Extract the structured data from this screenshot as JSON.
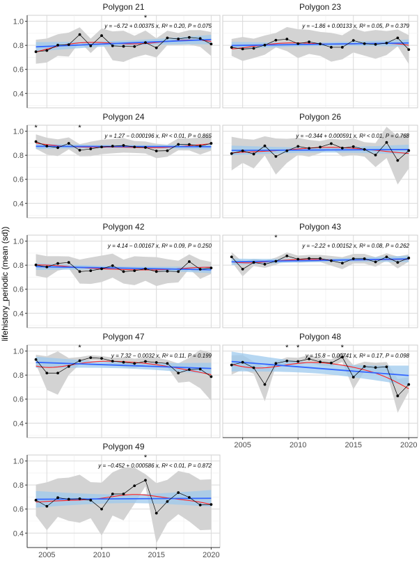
{
  "chart_data": {
    "type": "line",
    "ylabel": "lifehistory_periodic (mean (sd))",
    "xlabel": "",
    "xlim": [
      2003.2,
      2020.8
    ],
    "ylim": [
      0.28,
      1.05
    ],
    "x_ticks": [
      2005,
      2010,
      2015,
      2020
    ],
    "y_ticks": [
      0.4,
      0.6,
      0.8,
      1.0
    ],
    "grid": true,
    "colors": {
      "points": "#000000",
      "sd_band": "#d3d3d3",
      "linear_fit": "#3366ff",
      "linear_ci": "#9ec9ee",
      "smooth": "#ff2020"
    },
    "x": [
      2004,
      2005,
      2006,
      2007,
      2008,
      2009,
      2010,
      2011,
      2012,
      2013,
      2014,
      2015,
      2016,
      2017,
      2018,
      2019,
      2020
    ],
    "panels": [
      {
        "title": "Polygon 21",
        "equation": "y = −6.72 + 0.00375 x, R² = 0.20, P = 0.075",
        "stars": [
          2014
        ],
        "mean": [
          0.747,
          0.757,
          0.802,
          0.806,
          0.89,
          0.796,
          0.881,
          0.796,
          0.792,
          0.79,
          0.823,
          0.779,
          0.862,
          0.853,
          0.866,
          0.857,
          0.811
        ],
        "sd": [
          0.1,
          0.1,
          0.09,
          0.1,
          0.06,
          0.06,
          0.06,
          0.12,
          0.13,
          0.09,
          0.1,
          0.08,
          0.06,
          0.05,
          0.06,
          0.07,
          0.1
        ]
      },
      {
        "title": "Polygon 23",
        "equation": "y = −1.86 + 0.00133 x, R² = 0.05, P = 0.379",
        "stars": [],
        "mean": [
          0.783,
          0.77,
          0.775,
          0.802,
          0.843,
          0.852,
          0.814,
          0.829,
          0.812,
          0.784,
          0.784,
          0.841,
          0.814,
          0.808,
          0.819,
          0.862,
          0.765
        ],
        "sd": [
          0.07,
          0.1,
          0.08,
          0.08,
          0.06,
          0.1,
          0.12,
          0.1,
          0.1,
          0.12,
          0.1,
          0.1,
          0.1,
          0.12,
          0.1,
          0.07,
          0.12
        ]
      },
      {
        "title": "Polygon 24",
        "equation": "y = 1.27 − 0.000196 x, R² < 0.01, P = 0.865",
        "stars": [
          2004,
          2008
        ],
        "mean": [
          0.914,
          0.876,
          0.863,
          0.899,
          0.842,
          0.853,
          0.869,
          0.876,
          0.882,
          0.869,
          0.865,
          0.836,
          0.838,
          0.891,
          0.89,
          0.876,
          0.899
        ],
        "sd": [
          0.06,
          0.07,
          0.07,
          0.05,
          0.05,
          0.06,
          0.06,
          0.06,
          0.06,
          0.05,
          0.05,
          0.06,
          0.05,
          0.05,
          0.05,
          0.07,
          0.06
        ]
      },
      {
        "title": "Polygon 26",
        "equation": "y = −0.344 + 0.000591 x, R² < 0.01, P = 0.768",
        "stars": [],
        "mean": [
          0.814,
          0.837,
          0.81,
          0.878,
          0.79,
          0.837,
          0.874,
          0.858,
          0.868,
          0.897,
          0.86,
          0.872,
          0.849,
          0.802,
          0.907,
          0.757,
          0.839
        ],
        "sd": [
          0.14,
          0.1,
          0.12,
          0.08,
          0.15,
          0.1,
          0.07,
          0.07,
          0.05,
          0.04,
          0.07,
          0.07,
          0.06,
          0.1,
          0.13,
          0.2,
          0.15
        ]
      },
      {
        "title": "Polygon 42",
        "equation": "y = 4.14 − 0.00167 x, R² = 0.09, P = 0.250",
        "stars": [],
        "mean": [
          0.802,
          0.785,
          0.815,
          0.823,
          0.747,
          0.754,
          0.77,
          0.796,
          0.747,
          0.754,
          0.77,
          0.747,
          0.75,
          0.747,
          0.83,
          0.766,
          0.777
        ],
        "sd": [
          0.09,
          0.09,
          0.06,
          0.05,
          0.1,
          0.11,
          0.11,
          0.1,
          0.1,
          0.12,
          0.1,
          0.12,
          0.1,
          0.09,
          0.06,
          0.08,
          0.05
        ]
      },
      {
        "title": "Polygon 43",
        "equation": "y = −2.22 + 0.00152 x, R² = 0.08, P = 0.262",
        "stars": [
          2008
        ],
        "mean": [
          0.869,
          0.767,
          0.823,
          0.808,
          0.833,
          0.877,
          0.85,
          0.856,
          0.856,
          0.837,
          0.817,
          0.854,
          0.854,
          0.827,
          0.869,
          0.823,
          0.86
        ],
        "sd": [
          0.04,
          0.06,
          0.03,
          0.03,
          0.03,
          0.03,
          0.03,
          0.03,
          0.03,
          0.04,
          0.05,
          0.04,
          0.04,
          0.04,
          0.03,
          0.05,
          0.03
        ]
      },
      {
        "title": "Polygon 47",
        "equation": "y = 7.32 − 0.0032 x, R² = 0.11, P = 0.199",
        "stars": [
          2008
        ],
        "mean": [
          0.93,
          0.817,
          0.817,
          0.872,
          0.92,
          0.945,
          0.939,
          0.916,
          0.907,
          0.897,
          0.914,
          0.905,
          0.897,
          0.817,
          0.846,
          0.85,
          0.787
        ],
        "sd": [
          0.04,
          0.14,
          0.18,
          0.07,
          0.03,
          0.02,
          0.02,
          0.03,
          0.04,
          0.04,
          0.03,
          0.04,
          0.03,
          0.08,
          0.1,
          0.16,
          0.2
        ]
      },
      {
        "title": "Polygon 48",
        "equation": "y = 15.8 − 0.00741 x, R² = 0.17, P = 0.098",
        "stars": [
          2009,
          2010,
          2014
        ],
        "mean": [
          0.884,
          0.907,
          0.861,
          0.722,
          0.897,
          0.918,
          0.914,
          0.935,
          0.91,
          0.901,
          0.95,
          0.783,
          0.872,
          0.863,
          0.869,
          0.627,
          0.722
        ],
        "sd": [
          0.08,
          0.06,
          0.05,
          0.14,
          0.02,
          0.03,
          0.03,
          0.03,
          0.03,
          0.03,
          0.04,
          0.1,
          0.04,
          0.04,
          0.04,
          0.14,
          0.06
        ]
      },
      {
        "title": "Polygon 49",
        "equation": "y = −0.452 + 0.000586 x, R² < 0.01, P = 0.872",
        "stars": [
          2014
        ],
        "mean": [
          0.674,
          0.623,
          0.695,
          0.682,
          0.686,
          0.674,
          0.6,
          0.726,
          0.726,
          0.794,
          0.84,
          0.566,
          0.663,
          0.737,
          0.697,
          0.634,
          0.638
        ],
        "sd": [
          0.13,
          0.2,
          0.16,
          0.18,
          0.2,
          0.15,
          0.22,
          0.18,
          0.22,
          0.15,
          0.05,
          0.25,
          0.18,
          0.18,
          0.2,
          0.21,
          0.21
        ]
      }
    ]
  }
}
